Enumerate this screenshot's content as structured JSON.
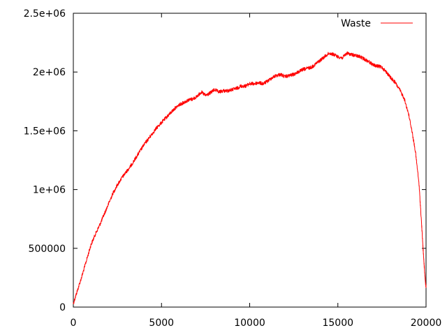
{
  "chart_data": {
    "type": "line",
    "title": "",
    "xlabel": "",
    "ylabel": "",
    "xlim": [
      0,
      20000
    ],
    "ylim": [
      0,
      2500000
    ],
    "xticks": [
      0,
      5000,
      10000,
      15000,
      20000
    ],
    "xtick_labels": [
      "0",
      "5000",
      "10000",
      "15000",
      "20000"
    ],
    "yticks": [
      0,
      500000,
      1000000,
      1500000,
      2000000,
      2500000
    ],
    "ytick_labels": [
      "0",
      "500000",
      "1e+06",
      "1.5e+06",
      "2e+06",
      "2.5e+06"
    ],
    "grid": false,
    "legend_position": "top-right",
    "series": [
      {
        "name": "Waste",
        "color": "#ff0000",
        "x": [
          0,
          250,
          500,
          750,
          1000,
          1250,
          1500,
          1750,
          2000,
          2250,
          2500,
          2750,
          3000,
          3250,
          3500,
          3750,
          4000,
          4250,
          4500,
          4750,
          5000,
          5250,
          5500,
          5750,
          6000,
          6250,
          6500,
          6750,
          7000,
          7250,
          7500,
          7750,
          8000,
          8250,
          8500,
          8750,
          9000,
          9250,
          9500,
          9750,
          10000,
          10250,
          10500,
          10750,
          11000,
          11250,
          11500,
          11750,
          12000,
          12250,
          12500,
          12750,
          13000,
          13250,
          13500,
          13750,
          14000,
          14250,
          14500,
          14750,
          15000,
          15250,
          15500,
          15750,
          16000,
          16250,
          16500,
          16750,
          17000,
          17250,
          17500,
          17750,
          18000,
          18250,
          18500,
          18750,
          19000,
          19200,
          19400,
          19600,
          19750,
          19850,
          19920,
          19970,
          20000
        ],
        "y": [
          30000,
          150000,
          270000,
          400000,
          530000,
          620000,
          700000,
          790000,
          880000,
          970000,
          1040000,
          1100000,
          1150000,
          1200000,
          1260000,
          1320000,
          1380000,
          1430000,
          1480000,
          1530000,
          1570000,
          1610000,
          1650000,
          1690000,
          1720000,
          1740000,
          1760000,
          1770000,
          1790000,
          1830000,
          1800000,
          1820000,
          1850000,
          1830000,
          1840000,
          1840000,
          1850000,
          1860000,
          1880000,
          1880000,
          1900000,
          1900000,
          1910000,
          1900000,
          1920000,
          1950000,
          1970000,
          1980000,
          1960000,
          1970000,
          1980000,
          2000000,
          2020000,
          2030000,
          2040000,
          2070000,
          2100000,
          2130000,
          2160000,
          2150000,
          2130000,
          2120000,
          2160000,
          2150000,
          2140000,
          2130000,
          2110000,
          2090000,
          2060000,
          2050000,
          2040000,
          2000000,
          1950000,
          1910000,
          1850000,
          1780000,
          1650000,
          1500000,
          1320000,
          1050000,
          700000,
          450000,
          300000,
          200000,
          170000
        ]
      }
    ]
  }
}
